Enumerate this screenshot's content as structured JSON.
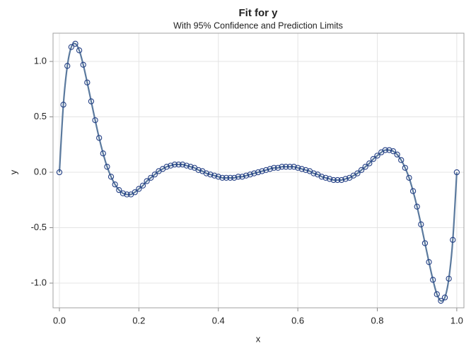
{
  "chart_data": {
    "type": "scatter",
    "title": "Fit for y",
    "subtitle": "With 95% Confidence and Prediction Limits",
    "x_label": "x",
    "y_label": "y",
    "x": [
      0,
      0.01,
      0.02,
      0.03,
      0.04,
      0.05,
      0.06,
      0.07,
      0.08,
      0.09,
      0.1,
      0.11,
      0.12,
      0.13,
      0.14,
      0.15,
      0.16,
      0.17,
      0.18,
      0.19,
      0.2,
      0.21,
      0.22,
      0.23,
      0.24,
      0.25,
      0.26,
      0.27,
      0.28,
      0.29,
      0.3,
      0.31,
      0.32,
      0.33,
      0.34,
      0.35,
      0.36,
      0.37,
      0.38,
      0.39,
      0.4,
      0.41,
      0.42,
      0.43,
      0.44,
      0.45,
      0.46,
      0.47,
      0.48,
      0.49,
      0.5,
      0.51,
      0.52,
      0.53,
      0.54,
      0.55,
      0.56,
      0.57,
      0.58,
      0.59,
      0.6,
      0.61,
      0.62,
      0.63,
      0.64,
      0.65,
      0.66,
      0.67,
      0.68,
      0.69,
      0.7,
      0.71,
      0.72,
      0.73,
      0.74,
      0.75,
      0.76,
      0.77,
      0.78,
      0.79,
      0.8,
      0.81,
      0.82,
      0.83,
      0.84,
      0.85,
      0.86,
      0.87,
      0.88,
      0.89,
      0.9,
      0.91,
      0.92,
      0.93,
      0.94,
      0.95,
      0.96,
      0.97,
      0.98,
      0.99,
      1
    ],
    "values": [
      0,
      0.61,
      0.96,
      1.13,
      1.16,
      1.1,
      0.97,
      0.81,
      0.64,
      0.47,
      0.31,
      0.17,
      0.05,
      -0.04,
      -0.11,
      -0.16,
      -0.19,
      -0.2,
      -0.2,
      -0.18,
      -0.15,
      -0.12,
      -0.08,
      -0.05,
      -0.02,
      0.01,
      0.03,
      0.05,
      0.06,
      0.07,
      0.07,
      0.07,
      0.06,
      0.05,
      0.04,
      0.02,
      0.01,
      -0.01,
      -0.02,
      -0.03,
      -0.04,
      -0.05,
      -0.05,
      -0.05,
      -0.05,
      -0.04,
      -0.04,
      -0.03,
      -0.02,
      -0.01,
      0,
      0.01,
      0.02,
      0.03,
      0.04,
      0.04,
      0.05,
      0.05,
      0.05,
      0.05,
      0.04,
      0.03,
      0.02,
      0.01,
      -0.01,
      -0.02,
      -0.04,
      -0.05,
      -0.06,
      -0.07,
      -0.07,
      -0.07,
      -0.06,
      -0.05,
      -0.03,
      -0.01,
      0.02,
      0.05,
      0.08,
      0.12,
      0.15,
      0.18,
      0.2,
      0.2,
      0.19,
      0.16,
      0.11,
      0.04,
      -0.05,
      -0.17,
      -0.31,
      -0.47,
      -0.64,
      -0.81,
      -0.97,
      -1.1,
      -1.16,
      -1.13,
      -0.96,
      -0.61,
      0
    ],
    "line_color": "#5b7a9e",
    "marker_color": "#233f85",
    "xlim": [
      -0.016,
      1.018
    ],
    "xticks": [
      {
        "value": 0,
        "label": "0.0"
      },
      0.2,
      0.4,
      0.6,
      0.8,
      {
        "value": 1,
        "label": "1.0"
      }
    ],
    "ylim": [
      -1.223,
      1.255
    ],
    "yticks": [
      {
        "value": -1,
        "label": "-1.0"
      },
      -0.5,
      {
        "value": 0,
        "label": "0.0"
      },
      0.5,
      {
        "value": 1,
        "label": "1.0"
      }
    ],
    "grid": true
  }
}
